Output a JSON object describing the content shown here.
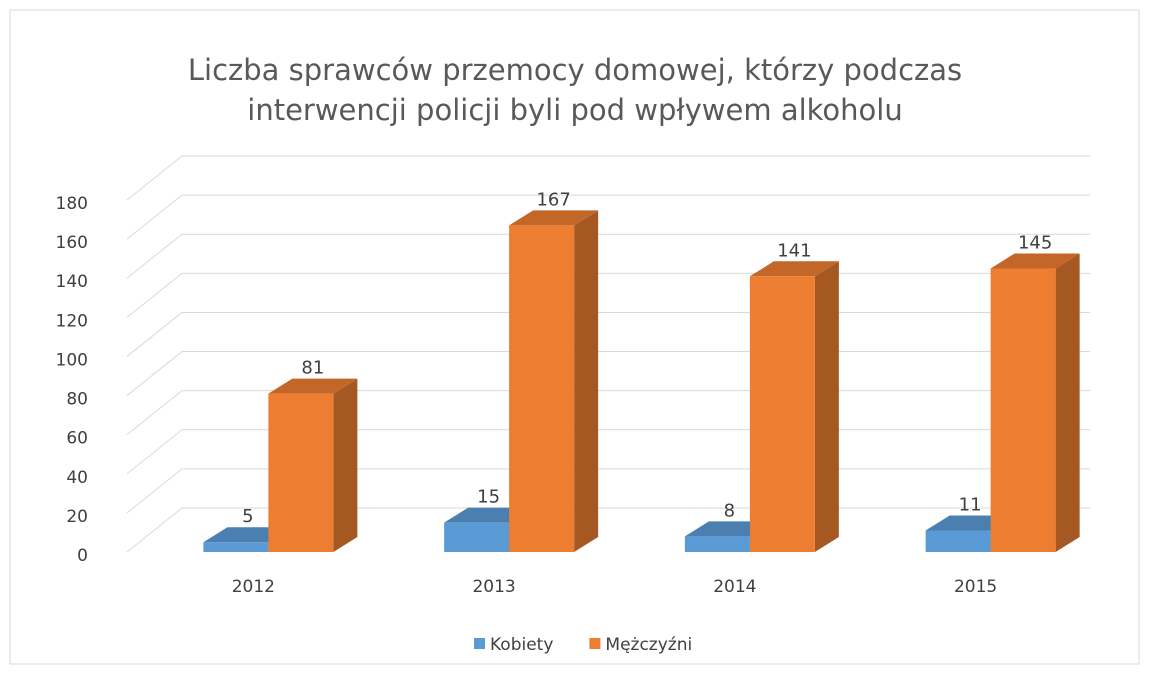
{
  "chart_data": {
    "type": "bar3d",
    "title": "Liczba sprawców przemocy domowej, którzy podczas",
    "subtitle": "interwencji policji byli pod wpływem alkoholu",
    "categories": [
      "2012",
      "2013",
      "2014",
      "2015"
    ],
    "series": [
      {
        "name": "Kobiety",
        "color": "#5b9bd5",
        "values": [
          5,
          15,
          8,
          11
        ]
      },
      {
        "name": "Mężczyźni",
        "color": "#ed7d31",
        "values": [
          81,
          167,
          141,
          145
        ]
      }
    ],
    "ylim": [
      0,
      180
    ],
    "yticks": [
      0,
      20,
      40,
      60,
      80,
      100,
      120,
      140,
      160,
      180
    ],
    "grid": true,
    "legend": "bottom",
    "data_labels": true
  }
}
